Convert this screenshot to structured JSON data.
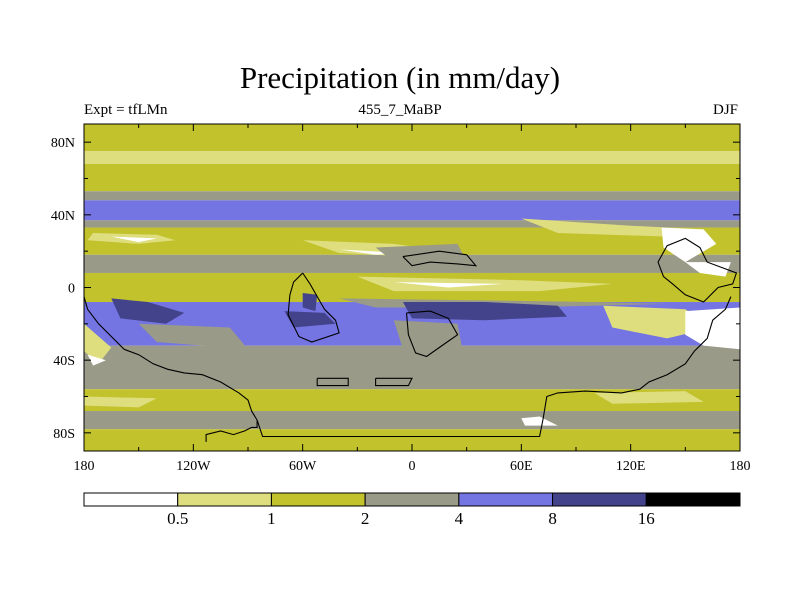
{
  "title": "Precipitation (in mm/day)",
  "left_label": "Expt = tfLMn",
  "center_label": "455_7_MaBP",
  "right_label": "DJF",
  "chart_data": {
    "type": "heatmap",
    "title": "Precipitation (in mm/day)",
    "variable": "Precipitation",
    "units": "mm/day",
    "season": "DJF",
    "experiment": "tfLMn",
    "case": "455_7_MaBP",
    "x_range": [
      -180,
      180
    ],
    "y_range": [
      -90,
      90
    ],
    "x_ticks": [
      -180,
      -120,
      -60,
      0,
      60,
      120,
      180
    ],
    "x_tick_labels": [
      "180",
      "120W",
      "60W",
      "0",
      "60E",
      "120E",
      "180"
    ],
    "y_ticks": [
      80,
      40,
      0,
      -40,
      -80
    ],
    "y_tick_labels": [
      "80N",
      "40N",
      "0",
      "40S",
      "80S"
    ],
    "colorbar": {
      "levels": [
        0.5,
        1,
        2,
        4,
        8,
        16
      ],
      "labels": [
        "0.5",
        "1",
        "2",
        "4",
        "8",
        "16"
      ],
      "colors": [
        "#ffffff",
        "#dede7e",
        "#c2c22c",
        "#9a9a88",
        "#7474e2",
        "#43438c",
        "#000000"
      ]
    },
    "zonal_bands": [
      {
        "lat_top": 90,
        "lat_bottom": 75,
        "color": "#c2c22c"
      },
      {
        "lat_top": 75,
        "lat_bottom": 68,
        "color": "#dede7e"
      },
      {
        "lat_top": 68,
        "lat_bottom": 53,
        "color": "#c2c22c"
      },
      {
        "lat_top": 53,
        "lat_bottom": 48,
        "color": "#9a9a88"
      },
      {
        "lat_top": 48,
        "lat_bottom": 37,
        "color": "#7474e2"
      },
      {
        "lat_top": 37,
        "lat_bottom": 33,
        "color": "#9a9a88"
      },
      {
        "lat_top": 33,
        "lat_bottom": 18,
        "color": "#c2c22c"
      },
      {
        "lat_top": 18,
        "lat_bottom": 8,
        "color": "#9a9a88"
      },
      {
        "lat_top": 8,
        "lat_bottom": -8,
        "color": "#c2c22c"
      },
      {
        "lat_top": -8,
        "lat_bottom": -32,
        "color": "#7474e2"
      },
      {
        "lat_top": -32,
        "lat_bottom": -56,
        "color": "#9a9a88"
      },
      {
        "lat_top": -56,
        "lat_bottom": -68,
        "color": "#c2c22c"
      },
      {
        "lat_top": -68,
        "lat_bottom": -78,
        "color": "#9a9a88"
      },
      {
        "lat_top": -78,
        "lat_bottom": -90,
        "color": "#c2c22c"
      }
    ],
    "regions": [
      {
        "name": "north-pacific-light-band",
        "color": "#dede7e",
        "pts": [
          [
            -175,
            30
          ],
          [
            -140,
            29
          ],
          [
            -130,
            26
          ],
          [
            -150,
            24
          ],
          [
            -178,
            26
          ]
        ]
      },
      {
        "name": "north-pacific-white-streak",
        "color": "#ffffff",
        "pts": [
          [
            -165,
            28
          ],
          [
            -140,
            27
          ],
          [
            -150,
            25
          ]
        ]
      },
      {
        "name": "north-atlantic-light-band",
        "color": "#dede7e",
        "pts": [
          [
            -60,
            26
          ],
          [
            -10,
            24
          ],
          [
            20,
            20
          ],
          [
            0,
            17
          ],
          [
            -40,
            19
          ]
        ]
      },
      {
        "name": "north-atlantic-white-streak",
        "color": "#ffffff",
        "pts": [
          [
            -40,
            21
          ],
          [
            -5,
            19
          ],
          [
            -20,
            18
          ]
        ]
      },
      {
        "name": "asia-north-light-band",
        "color": "#dede7e",
        "pts": [
          [
            60,
            38
          ],
          [
            120,
            34
          ],
          [
            160,
            32
          ],
          [
            140,
            28
          ],
          [
            80,
            30
          ]
        ]
      },
      {
        "name": "asia-white-patch",
        "color": "#ffffff",
        "pts": [
          [
            137,
            33
          ],
          [
            160,
            32
          ],
          [
            167,
            24
          ],
          [
            150,
            14
          ],
          [
            138,
            22
          ]
        ]
      },
      {
        "name": "west-pacific-white-patch",
        "color": "#ffffff",
        "pts": [
          [
            150,
            14
          ],
          [
            175,
            14
          ],
          [
            172,
            6
          ],
          [
            158,
            8
          ]
        ]
      },
      {
        "name": "equatorial-light-strip",
        "color": "#dede7e",
        "pts": [
          [
            -30,
            6
          ],
          [
            60,
            4
          ],
          [
            110,
            2
          ],
          [
            70,
            -2
          ],
          [
            -10,
            -2
          ]
        ]
      },
      {
        "name": "equatorial-white-line",
        "color": "#ffffff",
        "pts": [
          [
            -10,
            3
          ],
          [
            50,
            2
          ],
          [
            20,
            0
          ]
        ]
      },
      {
        "name": "west-africa-gray-patch",
        "color": "#9a9a88",
        "pts": [
          [
            -20,
            22
          ],
          [
            25,
            24
          ],
          [
            30,
            14
          ],
          [
            -5,
            10
          ]
        ]
      },
      {
        "name": "equatorial-gray-strip",
        "color": "#9a9a88",
        "pts": [
          [
            -40,
            -6
          ],
          [
            100,
            -8
          ],
          [
            140,
            -9
          ],
          [
            60,
            -11
          ],
          [
            -20,
            -11
          ]
        ]
      },
      {
        "name": "indian-ocean-dark-band",
        "color": "#43438c",
        "pts": [
          [
            -5,
            -8
          ],
          [
            40,
            -8
          ],
          [
            80,
            -10
          ],
          [
            85,
            -16
          ],
          [
            40,
            -18
          ],
          [
            0,
            -17
          ]
        ]
      },
      {
        "name": "east-pacific-dark-core",
        "color": "#43438c",
        "pts": [
          [
            -165,
            -6
          ],
          [
            -145,
            -8
          ],
          [
            -125,
            -14
          ],
          [
            -135,
            -20
          ],
          [
            -160,
            -17
          ]
        ]
      },
      {
        "name": "south-america-dark-spot",
        "color": "#43438c",
        "pts": [
          [
            -70,
            -13
          ],
          [
            -48,
            -14
          ],
          [
            -42,
            -20
          ],
          [
            -65,
            -22
          ]
        ]
      },
      {
        "name": "south-america-dark-patch-2",
        "color": "#43438c",
        "pts": [
          [
            -60,
            -3
          ],
          [
            -52,
            -4
          ],
          [
            -53,
            -13
          ],
          [
            -60,
            -11
          ]
        ]
      },
      {
        "name": "southern-africa-gray-patch",
        "color": "#9a9a88",
        "pts": [
          [
            -10,
            -18
          ],
          [
            25,
            -20
          ],
          [
            28,
            -36
          ],
          [
            -5,
            -34
          ]
        ]
      },
      {
        "name": "south-pacific-gray-patch",
        "color": "#9a9a88",
        "pts": [
          [
            -150,
            -20
          ],
          [
            -100,
            -22
          ],
          [
            -90,
            -34
          ],
          [
            -140,
            -30
          ]
        ]
      },
      {
        "name": "australia-light-patch",
        "color": "#dede7e",
        "pts": [
          [
            105,
            -10
          ],
          [
            150,
            -12
          ],
          [
            165,
            -22
          ],
          [
            140,
            -28
          ],
          [
            110,
            -22
          ]
        ]
      },
      {
        "name": "australia-white-patch",
        "color": "#ffffff",
        "pts": [
          [
            150,
            -13
          ],
          [
            180,
            -11
          ],
          [
            180,
            -34
          ],
          [
            160,
            -32
          ],
          [
            150,
            -26
          ]
        ]
      },
      {
        "name": "west-coast-light-strip",
        "color": "#dede7e",
        "pts": [
          [
            -180,
            -20
          ],
          [
            -165,
            -33
          ],
          [
            -172,
            -42
          ],
          [
            -180,
            -35
          ]
        ]
      },
      {
        "name": "west-coast-white-strip",
        "color": "#ffffff",
        "pts": [
          [
            -178,
            -37
          ],
          [
            -168,
            -40
          ],
          [
            -175,
            -43
          ]
        ]
      },
      {
        "name": "southern-ocean-light-patch",
        "color": "#dede7e",
        "pts": [
          [
            -180,
            -60
          ],
          [
            -140,
            -61
          ],
          [
            -150,
            -66
          ],
          [
            -180,
            -65
          ]
        ]
      },
      {
        "name": "southern-ocean-light-patch-2",
        "color": "#dede7e",
        "pts": [
          [
            100,
            -58
          ],
          [
            150,
            -57
          ],
          [
            160,
            -63
          ],
          [
            110,
            -64
          ]
        ]
      },
      {
        "name": "antarctic-white-streak",
        "color": "#ffffff",
        "pts": [
          [
            60,
            -72
          ],
          [
            70,
            -71
          ],
          [
            80,
            -76
          ],
          [
            62,
            -76
          ]
        ]
      }
    ],
    "coastlines": [
      {
        "name": "west-coast",
        "pts": [
          [
            -180,
            -5
          ],
          [
            -178,
            -12
          ],
          [
            -172,
            -20
          ],
          [
            -164,
            -28
          ],
          [
            -158,
            -34
          ],
          [
            -150,
            -37
          ],
          [
            -142,
            -42
          ],
          [
            -134,
            -45
          ],
          [
            -125,
            -47
          ],
          [
            -115,
            -48
          ],
          [
            -105,
            -52
          ],
          [
            -95,
            -58
          ],
          [
            -90,
            -62
          ],
          [
            -88,
            -68
          ],
          [
            -85,
            -73
          ]
        ]
      },
      {
        "name": "antarctica-boundary",
        "pts": [
          [
            -113,
            -85
          ],
          [
            -113,
            -81
          ],
          [
            -105,
            -79
          ],
          [
            -98,
            -81
          ],
          [
            -92,
            -79
          ],
          [
            -88,
            -77
          ],
          [
            -85,
            -77
          ],
          [
            -85,
            -73
          ],
          [
            -82,
            -82
          ],
          [
            -30,
            -82
          ],
          [
            40,
            -82
          ],
          [
            70,
            -82
          ],
          [
            72,
            -72
          ],
          [
            74,
            -60
          ],
          [
            80,
            -58
          ],
          [
            95,
            -57
          ],
          [
            115,
            -58
          ],
          [
            125,
            -56
          ],
          [
            130,
            -52
          ],
          [
            140,
            -48
          ],
          [
            150,
            -42
          ],
          [
            155,
            -35
          ],
          [
            162,
            -28
          ],
          [
            165,
            -18
          ],
          [
            172,
            -12
          ],
          [
            175,
            -5
          ]
        ]
      },
      {
        "name": "south-america-coast",
        "pts": [
          [
            -60,
            8
          ],
          [
            -56,
            2
          ],
          [
            -52,
            -5
          ],
          [
            -48,
            -12
          ],
          [
            -42,
            -18
          ],
          [
            -40,
            -25
          ],
          [
            -55,
            -30
          ],
          [
            -62,
            -27
          ],
          [
            -68,
            -15
          ],
          [
            -67,
            -4
          ],
          [
            -65,
            3
          ],
          [
            -60,
            8
          ]
        ]
      },
      {
        "name": "southern-africa-coast",
        "pts": [
          [
            -3,
            -14
          ],
          [
            10,
            -13
          ],
          [
            20,
            -17
          ],
          [
            25,
            -26
          ],
          [
            15,
            -33
          ],
          [
            8,
            -38
          ],
          [
            2,
            -36
          ],
          [
            -2,
            -26
          ],
          [
            -3,
            -14
          ]
        ]
      },
      {
        "name": "north-africa-coast",
        "pts": [
          [
            -5,
            17
          ],
          [
            15,
            20
          ],
          [
            30,
            18
          ],
          [
            35,
            12
          ],
          [
            25,
            13
          ],
          [
            10,
            14
          ],
          [
            0,
            12
          ],
          [
            -5,
            17
          ]
        ]
      },
      {
        "name": "asia-coast",
        "pts": [
          [
            135,
            14
          ],
          [
            140,
            23
          ],
          [
            150,
            27
          ],
          [
            158,
            22
          ],
          [
            162,
            14
          ],
          [
            170,
            11
          ],
          [
            178,
            8
          ],
          [
            176,
            2
          ],
          [
            168,
            0
          ],
          [
            160,
            -8
          ],
          [
            150,
            -4
          ],
          [
            143,
            2
          ],
          [
            138,
            6
          ],
          [
            135,
            14
          ]
        ]
      },
      {
        "name": "antarctic-island-1",
        "pts": [
          [
            -52,
            -50
          ],
          [
            -35,
            -50
          ],
          [
            -35,
            -54
          ],
          [
            -52,
            -54
          ],
          [
            -52,
            -50
          ]
        ]
      },
      {
        "name": "antarctic-island-2",
        "pts": [
          [
            -20,
            -50
          ],
          [
            0,
            -50
          ],
          [
            -2,
            -54
          ],
          [
            -20,
            -54
          ],
          [
            -20,
            -50
          ]
        ]
      }
    ]
  }
}
